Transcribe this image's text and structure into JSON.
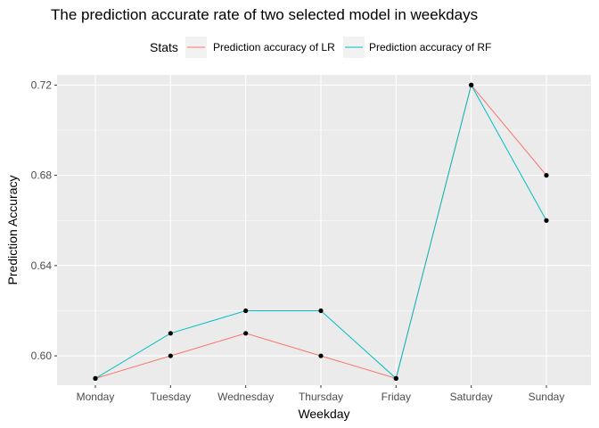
{
  "chart_data": {
    "type": "line",
    "title": "The prediction accurate rate of two selected model in weekdays",
    "xlabel": "Weekday",
    "ylabel": "Prediction Accuracy",
    "categories": [
      "Monday",
      "Tuesday",
      "Wednesday",
      "Thursday",
      "Friday",
      "Saturday",
      "Sunday"
    ],
    "ylim": [
      0.587,
      0.7245
    ],
    "yticks": [
      0.6,
      0.64,
      0.68,
      0.72
    ],
    "ytick_labels": [
      "0.60",
      "0.64",
      "0.68",
      "0.72"
    ],
    "legend": {
      "title": "Stats",
      "position": "top"
    },
    "series": [
      {
        "name": "Prediction accuracy of LR",
        "color": "#F8766D",
        "values": [
          0.59,
          0.6,
          0.61,
          0.6,
          0.59,
          0.72,
          0.68
        ]
      },
      {
        "name": "Prediction accuracy of RF",
        "color": "#00BFC4",
        "values": [
          0.59,
          0.61,
          0.62,
          0.62,
          0.59,
          0.72,
          0.66
        ]
      }
    ],
    "point_color": "#000000",
    "panel_background": "#EBEBEB",
    "grid_color": "#FFFFFF",
    "grid": true
  }
}
